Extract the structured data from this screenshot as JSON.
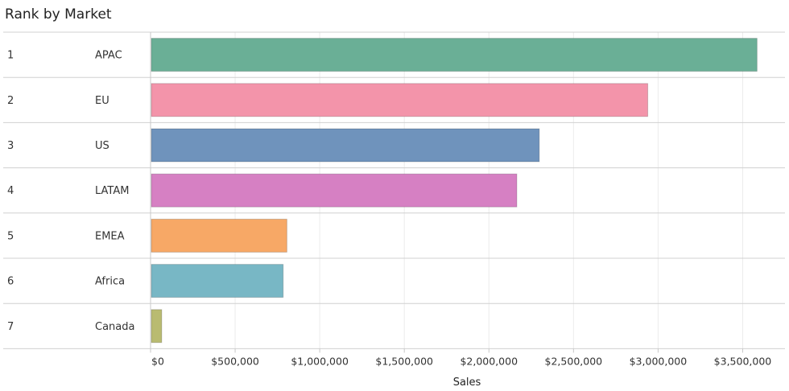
{
  "chart_data": {
    "type": "bar",
    "orientation": "horizontal",
    "title": "Rank by Market",
    "xlabel": "Sales",
    "ylabel": "",
    "xlim": [
      0,
      3750000
    ],
    "grid": true,
    "legend": "none",
    "ticks": [
      0,
      500000,
      1000000,
      1500000,
      2000000,
      2500000,
      3000000,
      3500000
    ],
    "tick_labels": [
      "$0",
      "$500,000",
      "$1,000,000",
      "$1,500,000",
      "$2,000,000",
      "$2,500,000",
      "$3,000,000",
      "$3,500,000"
    ],
    "ranks": [
      "1",
      "2",
      "3",
      "4",
      "5",
      "6",
      "7"
    ],
    "categories": [
      "APAC",
      "EU",
      "US",
      "LATAM",
      "EMEA",
      "Africa",
      "Canada"
    ],
    "values": [
      3585000,
      2939000,
      2298000,
      2165000,
      806000,
      784000,
      66000
    ],
    "colors": [
      "#6aaf96",
      "#f394aa",
      "#6f93bc",
      "#d680c3",
      "#f7a866",
      "#78b7c5",
      "#b9bb71"
    ]
  }
}
